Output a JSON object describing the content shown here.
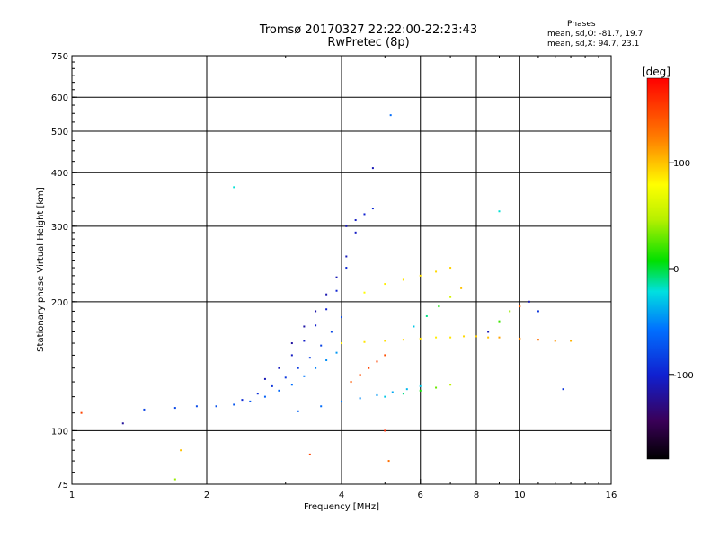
{
  "header": {
    "title_line1": "Tromsø 20170327 22:22:00-22:23:43",
    "title_line2": "RwPretec (8p)"
  },
  "phases": {
    "heading": "Phases",
    "line_o": "mean, sd,O: -81.7, 19.7",
    "line_x": "mean, sd,X:  94.7, 23.1"
  },
  "colorbar": {
    "unit_label": "[deg]",
    "ticks": [
      {
        "value": 100,
        "label": "100"
      },
      {
        "value": 0,
        "label": "0"
      },
      {
        "value": -100,
        "label": "-100"
      }
    ],
    "range": [
      -180,
      180
    ]
  },
  "chart_data": {
    "type": "scatter",
    "xlabel": "Frequency [MHz]",
    "ylabel": "Stationary phase Virtual Height [km]",
    "xscale": "log",
    "yscale": "log",
    "xlim": [
      1,
      16
    ],
    "ylim": [
      75,
      750
    ],
    "xticks": [
      1,
      2,
      4,
      6,
      8,
      10,
      16
    ],
    "xtick_labels": [
      "1",
      "2",
      "4",
      "6",
      "8",
      "10",
      "16"
    ],
    "yticks": [
      75,
      100,
      200,
      300,
      400,
      500,
      600,
      750
    ],
    "ytick_labels": [
      "75",
      "100",
      "200",
      "300",
      "400",
      "500",
      "600",
      "750"
    ],
    "grid_x": [
      2,
      4,
      6,
      8,
      10
    ],
    "grid_y": [
      100,
      200,
      300,
      400,
      500,
      600
    ],
    "traces": [
      {
        "x": [
          1.45,
          1.7,
          1.9,
          2.1,
          2.3,
          2.5,
          2.7,
          2.9,
          3.1,
          3.3,
          3.5,
          3.7,
          3.9
        ],
        "y": [
          112,
          113,
          114,
          114,
          115,
          117,
          120,
          124,
          128,
          134,
          140,
          146,
          152
        ],
        "phase": [
          -82,
          -80,
          -78,
          -75,
          -72,
          -70,
          -66,
          -62,
          -58,
          -55,
          -52,
          -48,
          -45
        ]
      },
      {
        "x": [
          2.4,
          2.6,
          2.8,
          3.0,
          3.2,
          3.4,
          3.6,
          3.8,
          4.0
        ],
        "y": [
          118,
          122,
          127,
          133,
          140,
          148,
          158,
          170,
          184
        ],
        "phase": [
          -95,
          -92,
          -90,
          -88,
          -86,
          -84,
          -82,
          -80,
          -78
        ]
      },
      {
        "x": [
          2.7,
          2.9,
          3.1,
          3.3,
          3.5,
          3.7,
          3.9,
          4.1
        ],
        "y": [
          132,
          140,
          150,
          162,
          176,
          192,
          212,
          240
        ],
        "phase": [
          -110,
          -108,
          -106,
          -104,
          -102,
          -100,
          -98,
          -96
        ]
      },
      {
        "x": [
          3.1,
          3.3,
          3.5,
          3.7,
          3.9,
          4.1,
          4.3
        ],
        "y": [
          160,
          175,
          190,
          208,
          228,
          255,
          290
        ],
        "phase": [
          -118,
          -116,
          -114,
          -112,
          -110,
          -108,
          -106
        ]
      },
      {
        "x": [
          3.2,
          3.6,
          4.0,
          4.4,
          4.8,
          5.2,
          5.6,
          6.0
        ],
        "y": [
          111,
          114,
          117,
          119,
          121,
          123,
          125,
          127
        ],
        "phase": [
          -65,
          -60,
          -55,
          -50,
          -45,
          -40,
          -35,
          -30
        ]
      },
      {
        "x": [
          4.0,
          4.5,
          5.0,
          5.5,
          6.0,
          6.5,
          7.0,
          7.5,
          8.0,
          8.5,
          9.0,
          10.0,
          11.0,
          12.0,
          13.0
        ],
        "y": [
          160,
          161,
          162,
          163,
          164,
          165,
          165,
          166,
          166,
          165,
          165,
          164,
          163,
          162,
          162
        ],
        "phase": [
          85,
          88,
          90,
          92,
          90,
          85,
          88,
          92,
          95,
          100,
          110,
          120,
          130,
          115,
          105
        ]
      },
      {
        "x": [
          4.2,
          4.4,
          4.6,
          4.8,
          5.0
        ],
        "y": [
          130,
          135,
          140,
          145,
          150
        ],
        "phase": [
          140,
          145,
          150,
          150,
          145
        ]
      },
      {
        "x": [
          4.5,
          5.0,
          5.5,
          6.0,
          6.5,
          7.0
        ],
        "y": [
          210,
          220,
          225,
          230,
          235,
          240
        ],
        "phase": [
          80,
          85,
          88,
          90,
          92,
          95
        ]
      },
      {
        "x": [
          5.0,
          5.5,
          6.0,
          6.5,
          7.0
        ],
        "y": [
          120,
          122,
          124,
          126,
          128
        ],
        "phase": [
          -30,
          -10,
          10,
          30,
          50
        ]
      },
      {
        "x": [
          5.8,
          6.2,
          6.6,
          7.0,
          7.4
        ],
        "y": [
          175,
          185,
          195,
          205,
          215
        ],
        "phase": [
          -30,
          -10,
          10,
          60,
          100
        ]
      },
      {
        "x": [
          8.5,
          9.0,
          9.5,
          10.0,
          10.5,
          11.0
        ],
        "y": [
          170,
          180,
          190,
          195,
          200,
          190
        ],
        "phase": [
          -110,
          20,
          40,
          140,
          -110,
          -90
        ]
      },
      {
        "x": [
          4.1,
          4.3,
          4.5,
          4.7
        ],
        "y": [
          300,
          310,
          320,
          330
        ],
        "phase": [
          -110,
          -105,
          -100,
          -95
        ]
      }
    ],
    "outliers": [
      {
        "x": 1.05,
        "y": 110,
        "phase": 150
      },
      {
        "x": 1.3,
        "y": 104,
        "phase": -120
      },
      {
        "x": 1.7,
        "y": 77,
        "phase": 40
      },
      {
        "x": 1.75,
        "y": 90,
        "phase": 100
      },
      {
        "x": 2.3,
        "y": 370,
        "phase": -20
      },
      {
        "x": 3.4,
        "y": 88,
        "phase": 150
      },
      {
        "x": 4.7,
        "y": 410,
        "phase": -110
      },
      {
        "x": 5.0,
        "y": 100,
        "phase": 160
      },
      {
        "x": 5.1,
        "y": 85,
        "phase": 130
      },
      {
        "x": 5.15,
        "y": 545,
        "phase": -60
      },
      {
        "x": 9.0,
        "y": 325,
        "phase": -20
      },
      {
        "x": 12.5,
        "y": 125,
        "phase": -90
      }
    ]
  }
}
